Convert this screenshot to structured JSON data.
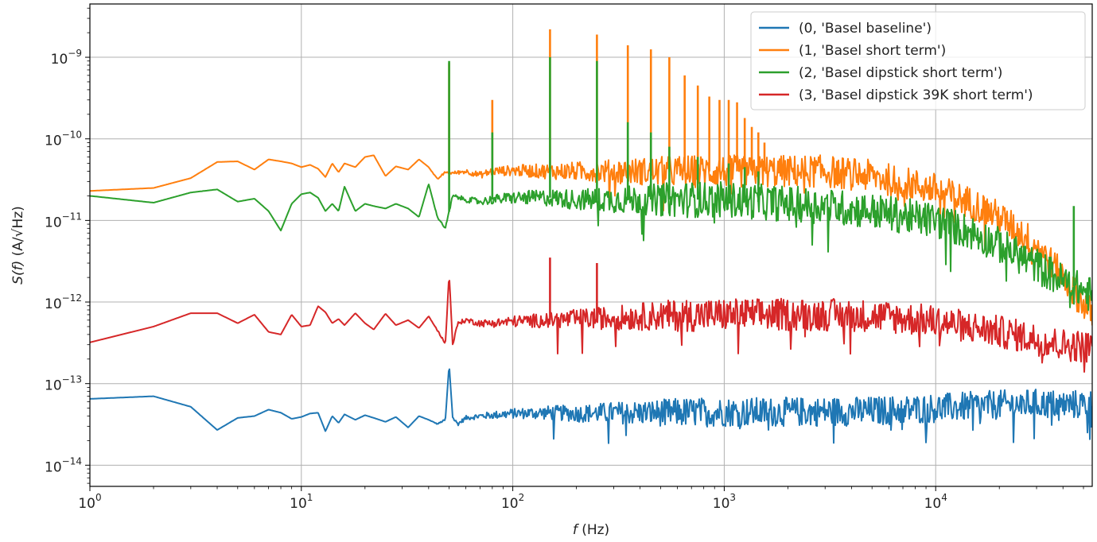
{
  "chart_data": {
    "type": "line",
    "x_scale": "log",
    "y_scale": "log",
    "xlim": [
      1,
      55000
    ],
    "ylim": [
      5.5e-15,
      4.5e-09
    ],
    "xlabel": {
      "var": "f",
      "unit": " (Hz)"
    },
    "ylabel": {
      "var": "S(f)",
      "unit": " (A/√Hz)"
    },
    "x_ticks": [
      {
        "value": 1,
        "label": "10",
        "exp": "0"
      },
      {
        "value": 10,
        "label": "10",
        "exp": "1"
      },
      {
        "value": 100,
        "label": "10",
        "exp": "2"
      },
      {
        "value": 1000,
        "label": "10",
        "exp": "3"
      },
      {
        "value": 10000,
        "label": "10",
        "exp": "4"
      }
    ],
    "y_ticks": [
      {
        "value": 1e-14,
        "label": "10",
        "exp": "−14"
      },
      {
        "value": 1e-13,
        "label": "10",
        "exp": "−13"
      },
      {
        "value": 1e-12,
        "label": "10",
        "exp": "−12"
      },
      {
        "value": 1e-11,
        "label": "10",
        "exp": "−11"
      },
      {
        "value": 1e-10,
        "label": "10",
        "exp": "−10"
      },
      {
        "value": 1e-09,
        "label": "10",
        "exp": "−9"
      }
    ],
    "grid": true,
    "legend": "top-right",
    "series": [
      {
        "name": "(0, 'Basel baseline')",
        "color": "#1f77b4",
        "x": [
          1,
          2,
          3,
          4,
          5,
          6,
          7,
          8,
          9,
          10,
          11,
          12,
          13,
          14,
          15,
          16,
          18,
          20,
          22,
          25,
          28,
          32,
          36,
          40,
          44,
          48,
          50,
          52,
          55,
          60,
          70,
          80,
          100,
          150,
          200,
          300,
          500,
          1000,
          2000,
          5000,
          10000,
          20000,
          30000,
          40000,
          55000
        ],
        "values": [
          6.5e-14,
          7e-14,
          5.2e-14,
          2.7e-14,
          3.8e-14,
          4e-14,
          4.8e-14,
          4.4e-14,
          3.7e-14,
          3.9e-14,
          4.3e-14,
          4.4e-14,
          2.6e-14,
          4e-14,
          3.3e-14,
          4.2e-14,
          3.6e-14,
          4.1e-14,
          3.8e-14,
          3.4e-14,
          3.9e-14,
          2.9e-14,
          4e-14,
          3.6e-14,
          3.2e-14,
          3.6e-14,
          1.7e-13,
          3.8e-14,
          3.2e-14,
          3.8e-14,
          4e-14,
          4.1e-14,
          4.3e-14,
          4.4e-14,
          4.3e-14,
          4.4e-14,
          4.4e-14,
          4.5e-14,
          4.5e-14,
          4.6e-14,
          5e-14,
          5.5e-14,
          5.7e-14,
          5.5e-14,
          5.6e-14
        ],
        "peaks": [],
        "noise": 0.18
      },
      {
        "name": "(1, 'Basel short term')",
        "color": "#ff7f0e",
        "x": [
          1,
          2,
          3,
          4,
          5,
          6,
          7,
          8,
          9,
          10,
          11,
          12,
          13,
          14,
          15,
          16,
          18,
          20,
          22,
          25,
          28,
          32,
          36,
          40,
          44,
          48,
          52,
          60,
          70,
          80,
          100,
          150,
          200,
          300,
          500,
          1000,
          2000,
          3000,
          5000,
          10000,
          15000,
          20000,
          30000,
          40000,
          55000
        ],
        "values": [
          2.3e-11,
          2.5e-11,
          3.3e-11,
          5.2e-11,
          5.3e-11,
          4.2e-11,
          5.6e-11,
          5.3e-11,
          5e-11,
          4.5e-11,
          4.8e-11,
          4.3e-11,
          3.4e-11,
          5e-11,
          3.9e-11,
          5e-11,
          4.5e-11,
          6e-11,
          6.3e-11,
          3.5e-11,
          4.6e-11,
          4.2e-11,
          5.6e-11,
          4.5e-11,
          3.2e-11,
          3.9e-11,
          3.8e-11,
          4e-11,
          3.6e-11,
          4e-11,
          4.1e-11,
          4e-11,
          4e-11,
          4e-11,
          4e-11,
          4e-11,
          4e-11,
          4e-11,
          3.5e-11,
          2.4e-11,
          1.6e-11,
          1.1e-11,
          5e-12,
          2e-12,
          7e-13
        ],
        "peaks": [
          {
            "x": 50,
            "y": 8.5e-10
          },
          {
            "x": 80,
            "y": 3e-10
          },
          {
            "x": 150,
            "y": 2.2e-09
          },
          {
            "x": 250,
            "y": 1.9e-09
          },
          {
            "x": 350,
            "y": 1.4e-09
          },
          {
            "x": 450,
            "y": 1.25e-09
          },
          {
            "x": 550,
            "y": 1e-09
          },
          {
            "x": 650,
            "y": 6e-10
          },
          {
            "x": 750,
            "y": 4.5e-10
          },
          {
            "x": 850,
            "y": 3.3e-10
          },
          {
            "x": 950,
            "y": 3e-10
          },
          {
            "x": 1050,
            "y": 3e-10
          },
          {
            "x": 1150,
            "y": 2.8e-10
          },
          {
            "x": 1250,
            "y": 1.8e-10
          },
          {
            "x": 1350,
            "y": 1.4e-10
          },
          {
            "x": 1450,
            "y": 1.2e-10
          },
          {
            "x": 1550,
            "y": 9e-11
          }
        ],
        "noise": 0.2
      },
      {
        "name": "(2, 'Basel dipstick short term')",
        "color": "#2ca02c",
        "x": [
          1,
          2,
          3,
          4,
          5,
          6,
          7,
          8,
          9,
          10,
          11,
          12,
          13,
          14,
          15,
          16,
          18,
          20,
          22,
          25,
          28,
          32,
          36,
          40,
          44,
          48,
          52,
          60,
          70,
          80,
          100,
          150,
          200,
          300,
          500,
          1000,
          2000,
          3000,
          5000,
          10000,
          15000,
          20000,
          30000,
          40000,
          55000
        ],
        "values": [
          2e-11,
          1.65e-11,
          2.2e-11,
          2.4e-11,
          1.7e-11,
          1.85e-11,
          1.3e-11,
          7.5e-12,
          1.6e-11,
          2.1e-11,
          2.2e-11,
          1.9e-11,
          1.3e-11,
          1.6e-11,
          1.3e-11,
          2.6e-11,
          1.3e-11,
          1.6e-11,
          1.5e-11,
          1.4e-11,
          1.6e-11,
          1.4e-11,
          1.1e-11,
          2.8e-11,
          1.1e-11,
          8e-12,
          2e-11,
          1.8e-11,
          1.7e-11,
          1.8e-11,
          1.9e-11,
          1.9e-11,
          1.8e-11,
          1.8e-11,
          1.8e-11,
          1.8e-11,
          1.6e-11,
          1.5e-11,
          1.3e-11,
          1e-11,
          7e-12,
          5e-12,
          2.8e-12,
          1.8e-12,
          1.2e-12
        ],
        "peaks": [
          {
            "x": 50,
            "y": 9e-10
          },
          {
            "x": 80,
            "y": 1.2e-10
          },
          {
            "x": 150,
            "y": 1e-09
          },
          {
            "x": 250,
            "y": 9e-10
          },
          {
            "x": 350,
            "y": 1.6e-10
          },
          {
            "x": 450,
            "y": 1.2e-10
          },
          {
            "x": 550,
            "y": 8e-11
          },
          {
            "x": 750,
            "y": 6e-11
          },
          {
            "x": 1050,
            "y": 5e-11
          },
          {
            "x": 1250,
            "y": 4.5e-11
          },
          {
            "x": 1450,
            "y": 4e-11
          },
          {
            "x": 45000,
            "y": 1.5e-11
          }
        ],
        "noise": 0.22
      },
      {
        "name": "(3, 'Basel dipstick 39K short term')",
        "color": "#d62728",
        "x": [
          1,
          2,
          3,
          4,
          5,
          6,
          7,
          8,
          9,
          10,
          11,
          12,
          13,
          14,
          15,
          16,
          18,
          20,
          22,
          25,
          28,
          32,
          36,
          40,
          44,
          48,
          50,
          52,
          55,
          60,
          70,
          80,
          100,
          150,
          200,
          300,
          500,
          1000,
          2000,
          3000,
          5000,
          10000,
          20000,
          30000,
          40000,
          55000
        ],
        "values": [
          3.2e-13,
          5e-13,
          7.3e-13,
          7.3e-13,
          5.5e-13,
          7e-13,
          4.3e-13,
          4e-13,
          7e-13,
          5e-13,
          5.2e-13,
          8.9e-13,
          7.5e-13,
          5.5e-13,
          6.2e-13,
          5.2e-13,
          7.3e-13,
          5.5e-13,
          4.6e-13,
          7.2e-13,
          5.2e-13,
          6e-13,
          4.8e-13,
          6.7e-13,
          4.5e-13,
          3.1e-13,
          2.2e-12,
          3e-13,
          5.5e-13,
          6e-13,
          5.5e-13,
          5.5e-13,
          5.8e-13,
          6e-13,
          6.2e-13,
          6.4e-13,
          6.8e-13,
          7e-13,
          7e-13,
          7e-13,
          6.8e-13,
          5.8e-13,
          4.3e-13,
          3.5e-13,
          3e-13,
          2.8e-13
        ],
        "peaks": [
          {
            "x": 150,
            "y": 3.5e-12
          },
          {
            "x": 250,
            "y": 3e-12
          }
        ],
        "noise": 0.2
      }
    ]
  }
}
